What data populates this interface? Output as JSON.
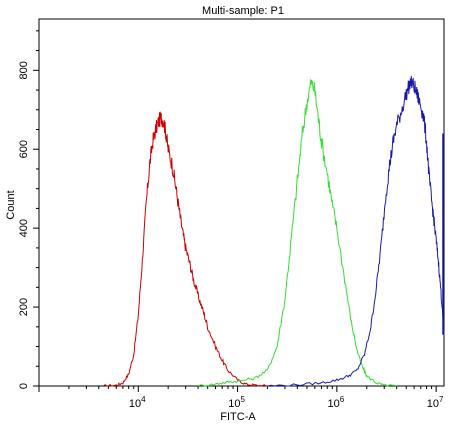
{
  "chart_data": {
    "type": "line",
    "title": "Multi-sample: P1",
    "xlabel": "FITC-A",
    "ylabel": "Count",
    "x_scale": "log",
    "xlim": [
      1000,
      12000000
    ],
    "ylim": [
      0,
      930
    ],
    "x_ticks": [
      {
        "value": 10000,
        "base": "10",
        "exp": "4"
      },
      {
        "value": 100000,
        "base": "10",
        "exp": "5"
      },
      {
        "value": 1000000,
        "base": "10",
        "exp": "6"
      },
      {
        "value": 10000000,
        "base": "10",
        "exp": "7"
      }
    ],
    "y_ticks": [
      0,
      200,
      400,
      600,
      800
    ],
    "grid": false,
    "series": [
      {
        "color": "#cc0000",
        "points": [
          [
            4500,
            0
          ],
          [
            6000,
            2
          ],
          [
            7000,
            8
          ],
          [
            8000,
            30
          ],
          [
            9000,
            80
          ],
          [
            10000,
            180
          ],
          [
            11000,
            320
          ],
          [
            12000,
            460
          ],
          [
            13000,
            560
          ],
          [
            14000,
            620
          ],
          [
            15000,
            650
          ],
          [
            16000,
            670
          ],
          [
            17000,
            680
          ],
          [
            18000,
            672
          ],
          [
            19000,
            640
          ],
          [
            20000,
            600
          ],
          [
            22000,
            560
          ],
          [
            24000,
            500
          ],
          [
            26000,
            440
          ],
          [
            28000,
            390
          ],
          [
            30000,
            350
          ],
          [
            33000,
            310
          ],
          [
            36000,
            270
          ],
          [
            40000,
            230
          ],
          [
            45000,
            190
          ],
          [
            50000,
            150
          ],
          [
            60000,
            100
          ],
          [
            70000,
            65
          ],
          [
            80000,
            40
          ],
          [
            100000,
            15
          ],
          [
            120000,
            5
          ],
          [
            150000,
            2
          ],
          [
            200000,
            0
          ]
        ]
      },
      {
        "color": "#33dd33",
        "points": [
          [
            40000,
            0
          ],
          [
            60000,
            5
          ],
          [
            80000,
            10
          ],
          [
            100000,
            12
          ],
          [
            150000,
            20
          ],
          [
            200000,
            40
          ],
          [
            250000,
            100
          ],
          [
            300000,
            220
          ],
          [
            350000,
            380
          ],
          [
            400000,
            520
          ],
          [
            450000,
            640
          ],
          [
            500000,
            720
          ],
          [
            550000,
            770
          ],
          [
            600000,
            750
          ],
          [
            650000,
            680
          ],
          [
            700000,
            620
          ],
          [
            800000,
            540
          ],
          [
            900000,
            460
          ],
          [
            1000000,
            400
          ],
          [
            1200000,
            270
          ],
          [
            1400000,
            160
          ],
          [
            1600000,
            90
          ],
          [
            1800000,
            50
          ],
          [
            2000000,
            25
          ],
          [
            2500000,
            8
          ],
          [
            3000000,
            2
          ],
          [
            4000000,
            0
          ]
        ]
      },
      {
        "color": "#1a1aaa",
        "points": [
          [
            200000,
            0
          ],
          [
            400000,
            3
          ],
          [
            700000,
            8
          ],
          [
            1000000,
            15
          ],
          [
            1300000,
            25
          ],
          [
            1600000,
            40
          ],
          [
            1900000,
            80
          ],
          [
            2200000,
            150
          ],
          [
            2500000,
            250
          ],
          [
            2800000,
            360
          ],
          [
            3100000,
            480
          ],
          [
            3400000,
            560
          ],
          [
            3700000,
            620
          ],
          [
            4000000,
            660
          ],
          [
            4500000,
            700
          ],
          [
            5000000,
            740
          ],
          [
            5500000,
            770
          ],
          [
            6000000,
            760
          ],
          [
            6500000,
            735
          ],
          [
            7000000,
            710
          ],
          [
            7500000,
            680
          ],
          [
            8000000,
            620
          ],
          [
            8500000,
            530
          ],
          [
            9000000,
            470
          ],
          [
            9500000,
            420
          ],
          [
            10000000,
            370
          ],
          [
            10500000,
            320
          ],
          [
            11000000,
            260
          ],
          [
            11500000,
            200
          ],
          [
            12000000,
            130
          ]
        ]
      }
    ]
  }
}
